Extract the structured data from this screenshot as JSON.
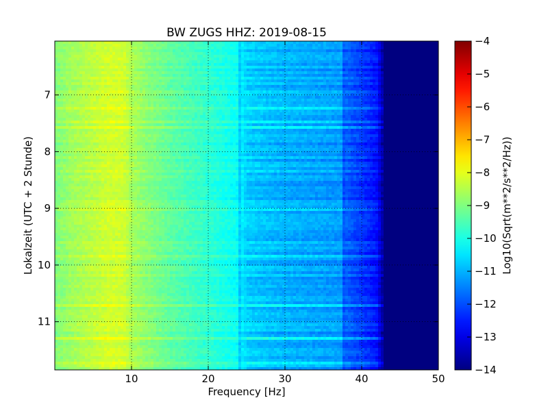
{
  "chart_data": {
    "type": "heatmap",
    "title": "BW ZUGS HHZ: 2019-08-15",
    "xlabel": "Frequency [Hz]",
    "ylabel": "Lokalzeit (UTC + 2 Stunde)",
    "xlim": [
      0,
      50
    ],
    "ylim": [
      11.85,
      6.05
    ],
    "x_ticks": [
      10,
      20,
      30,
      40,
      50
    ],
    "y_ticks": [
      7,
      8,
      9,
      10,
      11
    ],
    "grid": true,
    "colormap": "jet",
    "colorbar": {
      "label": "Log10(Sqrt(m**2/s**2/Hz))",
      "range": [
        -14,
        -4
      ],
      "ticks": [
        -4,
        -5,
        -6,
        -7,
        -8,
        -9,
        -10,
        -11,
        -12,
        -13,
        -14
      ]
    },
    "spectral_profile": {
      "frequency_hz": [
        0,
        2,
        5,
        7,
        9,
        10,
        12,
        15,
        18,
        20,
        22,
        24,
        25,
        28,
        30,
        33,
        36,
        37.5,
        38,
        40,
        42,
        43,
        44,
        50
      ],
      "log10_amplitude": [
        -9.0,
        -8.7,
        -8.4,
        -8.2,
        -8.2,
        -8.6,
        -8.9,
        -9.3,
        -9.6,
        -9.8,
        -10.0,
        -10.2,
        -10.7,
        -10.9,
        -11.0,
        -11.1,
        -11.2,
        -11.2,
        -11.8,
        -12.2,
        -12.6,
        -14.0,
        -14.0,
        -14.0
      ]
    }
  },
  "colors": {
    "jet": [
      "#00007f",
      "#0000ff",
      "#007fff",
      "#00ffff",
      "#7fff7f",
      "#ffff00",
      "#ff7f00",
      "#ff0000",
      "#7f0000"
    ]
  }
}
